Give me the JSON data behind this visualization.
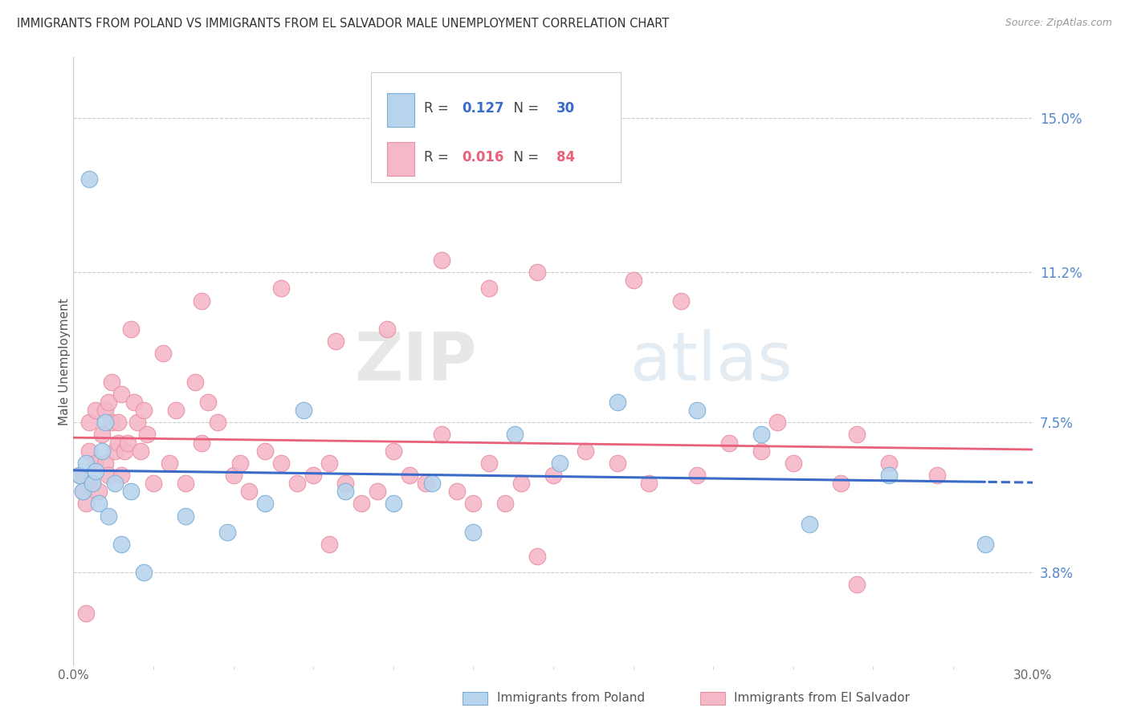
{
  "title": "IMMIGRANTS FROM POLAND VS IMMIGRANTS FROM EL SALVADOR MALE UNEMPLOYMENT CORRELATION CHART",
  "source": "Source: ZipAtlas.com",
  "ylabel": "Male Unemployment",
  "yticks": [
    3.8,
    7.5,
    11.2,
    15.0
  ],
  "xlim": [
    0.0,
    30.0
  ],
  "ylim": [
    1.5,
    16.5
  ],
  "series1_label": "Immigrants from Poland",
  "series2_label": "Immigrants from El Salvador",
  "series1_R": 0.127,
  "series1_N": 30,
  "series2_R": 0.016,
  "series2_N": 84,
  "color_poland": "#b8d4ed",
  "color_elsalvador": "#f5b8c8",
  "color_poland_line": "#3a6bc9",
  "color_elsalvador_line": "#e8607a",
  "color_poland_border": "#7aaed6",
  "color_elsalvador_border": "#e890a0",
  "watermark_zip": "ZIP",
  "watermark_atlas": "atlas",
  "poland_x": [
    0.2,
    0.3,
    0.4,
    0.5,
    0.6,
    0.7,
    0.8,
    0.9,
    1.0,
    1.1,
    1.3,
    1.5,
    1.8,
    2.2,
    3.5,
    4.8,
    6.0,
    7.2,
    8.5,
    10.0,
    11.2,
    12.5,
    13.8,
    15.2,
    17.0,
    19.5,
    21.5,
    23.0,
    25.5,
    28.5
  ],
  "poland_y": [
    6.2,
    5.8,
    6.5,
    13.5,
    6.0,
    6.3,
    5.5,
    6.8,
    7.5,
    5.2,
    6.0,
    4.5,
    5.8,
    3.8,
    5.2,
    4.8,
    5.5,
    7.8,
    5.8,
    5.5,
    6.0,
    4.8,
    7.2,
    6.5,
    8.0,
    7.8,
    7.2,
    5.0,
    6.2,
    4.5
  ],
  "elsalvador_x": [
    0.2,
    0.3,
    0.4,
    0.5,
    0.5,
    0.6,
    0.7,
    0.7,
    0.8,
    0.9,
    1.0,
    1.0,
    1.1,
    1.1,
    1.2,
    1.2,
    1.3,
    1.4,
    1.4,
    1.5,
    1.5,
    1.6,
    1.7,
    1.8,
    1.9,
    2.0,
    2.1,
    2.2,
    2.3,
    2.5,
    2.8,
    3.0,
    3.2,
    3.5,
    3.8,
    4.0,
    4.2,
    4.5,
    5.0,
    5.2,
    5.5,
    6.0,
    6.5,
    7.0,
    7.5,
    8.0,
    8.5,
    9.0,
    9.5,
    10.0,
    10.5,
    11.0,
    11.5,
    12.0,
    12.5,
    13.0,
    13.5,
    14.0,
    15.0,
    16.0,
    17.0,
    18.0,
    19.5,
    20.5,
    21.5,
    22.5,
    24.0,
    25.5,
    27.0,
    4.0,
    6.5,
    8.2,
    9.8,
    11.5,
    13.0,
    14.5,
    17.5,
    19.0,
    22.0,
    24.5,
    14.5,
    24.5,
    8.0,
    0.4
  ],
  "elsalvador_y": [
    6.2,
    5.8,
    5.5,
    6.8,
    7.5,
    6.0,
    6.5,
    7.8,
    5.8,
    7.2,
    6.5,
    7.8,
    8.0,
    6.2,
    7.5,
    8.5,
    6.8,
    7.0,
    7.5,
    6.2,
    8.2,
    6.8,
    7.0,
    9.8,
    8.0,
    7.5,
    6.8,
    7.8,
    7.2,
    6.0,
    9.2,
    6.5,
    7.8,
    6.0,
    8.5,
    7.0,
    8.0,
    7.5,
    6.2,
    6.5,
    5.8,
    6.8,
    6.5,
    6.0,
    6.2,
    6.5,
    6.0,
    5.5,
    5.8,
    6.8,
    6.2,
    6.0,
    7.2,
    5.8,
    5.5,
    6.5,
    5.5,
    6.0,
    6.2,
    6.8,
    6.5,
    6.0,
    6.2,
    7.0,
    6.8,
    6.5,
    6.0,
    6.5,
    6.2,
    10.5,
    10.8,
    9.5,
    9.8,
    11.5,
    10.8,
    11.2,
    11.0,
    10.5,
    7.5,
    7.2,
    4.2,
    3.5,
    4.5,
    2.8
  ]
}
